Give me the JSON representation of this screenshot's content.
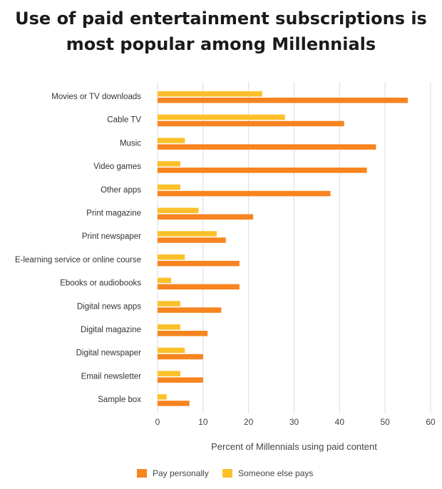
{
  "title_line1": "Use of paid entertainment subscriptions is",
  "title_line2": "most popular among Millennials",
  "chart_data": {
    "type": "bar",
    "orientation": "horizontal",
    "categories": [
      "Movies or TV downloads",
      "Cable TV",
      "Music",
      "Video games",
      "Other apps",
      "Print magazine",
      "Print newspaper",
      "E-learning service or online course",
      "Ebooks or audiobooks",
      "Digital news apps",
      "Digital magazine",
      "Digital newspaper",
      "Email newsletter",
      "Sample box"
    ],
    "series": [
      {
        "name": "Pay personally",
        "color": "#f7841f",
        "values": [
          55,
          41,
          48,
          46,
          38,
          21,
          15,
          18,
          18,
          14,
          11,
          10,
          10,
          7
        ]
      },
      {
        "name": "Someone else pays",
        "color": "#fcc02a",
        "values": [
          23,
          28,
          6,
          5,
          5,
          9,
          13,
          6,
          3,
          5,
          5,
          6,
          5,
          2
        ]
      }
    ],
    "xlabel": "Percent of Millennials using paid content",
    "xlim": [
      0,
      60
    ],
    "xticks": [
      0,
      10,
      20,
      30,
      40,
      50,
      60
    ],
    "grid": "vertical",
    "legend_position": "bottom"
  }
}
